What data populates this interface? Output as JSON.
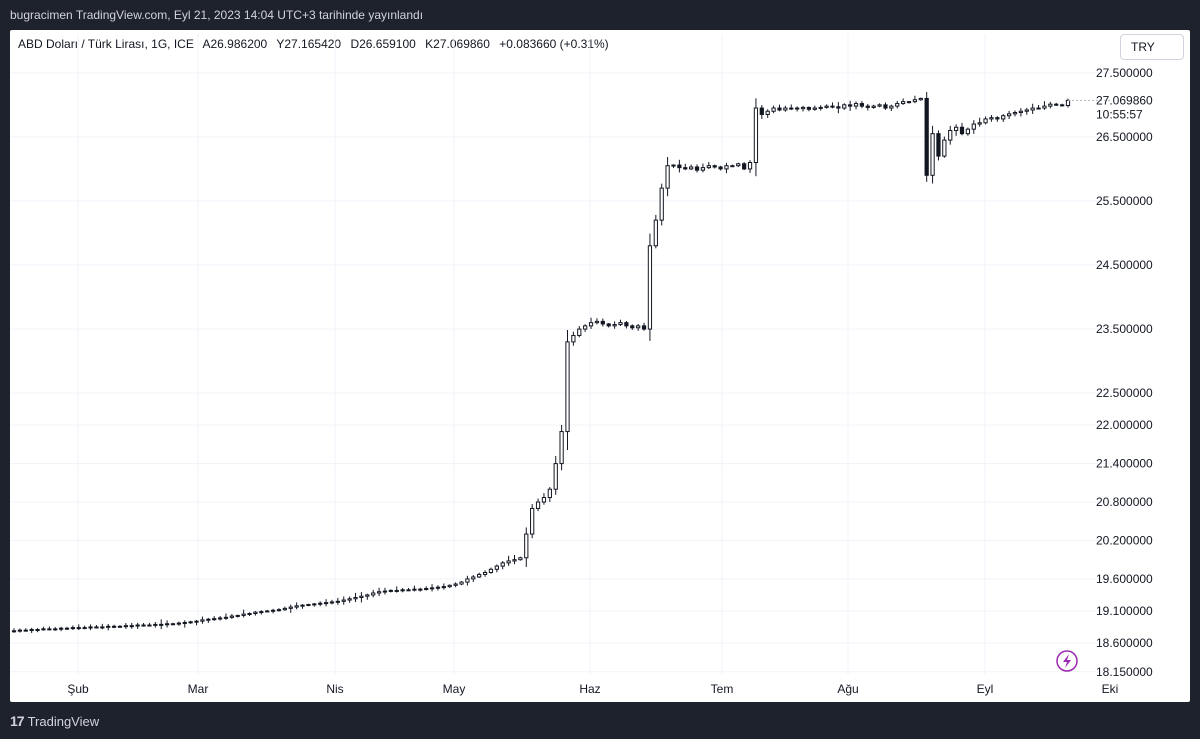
{
  "header": {
    "published_text": "bugracimen TradingView.com, Eyl 21, 2023 14:04 UTC+3 tarihinde yayınlandı"
  },
  "legend": {
    "symbol": "ABD Doları / Türk Lirası, 1G, ICE",
    "open": "A26.986200",
    "high": "Y27.165420",
    "low": "D26.659100",
    "close": "K27.069860",
    "change": "+0.083660 (+0.31%)"
  },
  "currency_button": "TRY",
  "price_label": {
    "value": "27.069860",
    "countdown": "10:55:57"
  },
  "footer": {
    "brand": "TradingView"
  },
  "colors": {
    "background": "#1e222d",
    "panel": "#ffffff",
    "candle_body_up": "#ffffff",
    "candle_outline": "#131722",
    "grid": "#f0f3fa",
    "lightning_icon": "#9c27b0"
  },
  "chart_data": {
    "type": "candlestick",
    "title": "",
    "x_ticks": [
      "Şub",
      "Mar",
      "Nis",
      "May",
      "Haz",
      "Tem",
      "Ağu",
      "Eyl",
      "Eki"
    ],
    "y_ticks": [
      "27.500000",
      "26.500000",
      "25.500000",
      "24.500000",
      "23.500000",
      "22.500000",
      "22.000000",
      "21.400000",
      "20.800000",
      "20.200000",
      "19.600000",
      "19.100000",
      "18.600000",
      "18.150000"
    ],
    "y_range": [
      18.1,
      27.7
    ],
    "grid": true,
    "series_closes": [
      18.79,
      18.8,
      18.8,
      18.81,
      18.81,
      18.82,
      18.82,
      18.82,
      18.83,
      18.83,
      18.84,
      18.84,
      18.84,
      18.85,
      18.85,
      18.85,
      18.86,
      18.86,
      18.86,
      18.87,
      18.87,
      18.88,
      18.88,
      18.88,
      18.89,
      18.89,
      18.9,
      18.9,
      18.91,
      18.92,
      18.93,
      18.94,
      18.96,
      18.97,
      18.98,
      18.99,
      19.0,
      19.02,
      19.03,
      19.05,
      19.06,
      19.08,
      19.09,
      19.1,
      19.11,
      19.12,
      19.14,
      19.16,
      19.18,
      19.19,
      19.2,
      19.21,
      19.22,
      19.23,
      19.24,
      19.25,
      19.27,
      19.29,
      19.31,
      19.33,
      19.35,
      19.38,
      19.4,
      19.41,
      19.42,
      19.42,
      19.43,
      19.43,
      19.44,
      19.44,
      19.45,
      19.46,
      19.47,
      19.48,
      19.5,
      19.52,
      19.55,
      19.6,
      19.63,
      19.67,
      19.7,
      19.75,
      19.8,
      19.85,
      19.88,
      19.9,
      19.93,
      20.3,
      20.7,
      20.8,
      20.87,
      21.0,
      21.4,
      21.9,
      23.3,
      23.4,
      23.5,
      23.55,
      23.6,
      23.62,
      23.58,
      23.55,
      23.57,
      23.6,
      23.55,
      23.52,
      23.55,
      23.5,
      24.8,
      25.2,
      25.7,
      26.05,
      26.06,
      26.02,
      26.0,
      26.03,
      25.98,
      26.02,
      26.05,
      26.03,
      26.0,
      26.05,
      26.05,
      26.08,
      26.0,
      26.1,
      26.95,
      26.85,
      26.9,
      26.95,
      26.92,
      26.95,
      26.95,
      26.94,
      26.96,
      26.93,
      26.95,
      26.96,
      26.98,
      26.97,
      26.95,
      27.0,
      26.98,
      27.02,
      26.98,
      26.96,
      26.98,
      27.0,
      26.95,
      26.98,
      27.02,
      27.05,
      27.05,
      27.08,
      27.1,
      25.9,
      26.55,
      26.2,
      26.45,
      26.6,
      26.65,
      26.55,
      26.62,
      26.7,
      26.72,
      26.78,
      26.8,
      26.78,
      26.83,
      26.86,
      26.88,
      26.9,
      26.92,
      26.95,
      26.95,
      26.98,
      27.01,
      27.0,
      26.99,
      27.07
    ]
  }
}
